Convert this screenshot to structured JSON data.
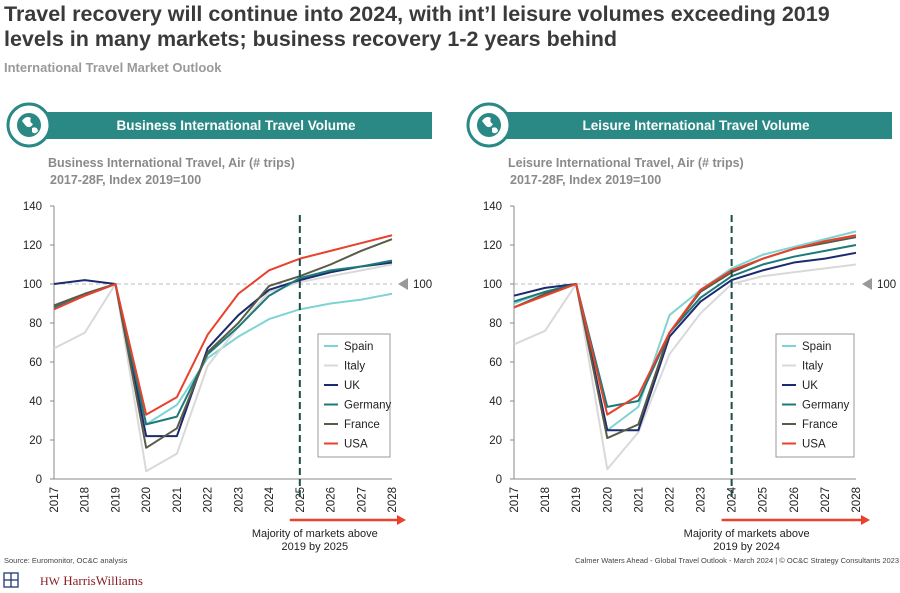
{
  "title": "Travel recovery will continue into 2024, with int’l leisure volumes exceeding 2019 levels in many markets; business recovery 1-2 years behind",
  "subtitle": "International Travel Market Outlook",
  "source": "Source: Euromonitor, OC&C analysis",
  "footer": "Calmer Waters Ahead - Global Travel Outlook - March 2024 | © OC&C Strategy Consultants 2023",
  "logo_mark": "HW",
  "logo": "HarrisWilliams",
  "chart_data": [
    {
      "type": "line",
      "title": "Business International Travel Volume",
      "subtitle_lines": [
        "Business International Travel, Air (# trips)",
        "2017-28F, Index 2019=100"
      ],
      "categories": [
        "2017",
        "2018",
        "2019",
        "2020",
        "2021",
        "2022",
        "2023",
        "2024",
        "2025",
        "2026",
        "2027",
        "2028"
      ],
      "series": [
        {
          "name": "Spain",
          "color": "#7fd3d3",
          "values": [
            88,
            94,
            100,
            28,
            38,
            62,
            73,
            82,
            87,
            90,
            92,
            95
          ]
        },
        {
          "name": "Italy",
          "color": "#d9d9d9",
          "values": [
            67,
            75,
            100,
            4,
            13,
            58,
            78,
            96,
            101,
            104,
            107,
            110
          ]
        },
        {
          "name": "UK",
          "color": "#1c2a6e",
          "values": [
            100,
            102,
            100,
            22,
            22,
            67,
            84,
            97,
            102,
            106,
            109,
            111
          ]
        },
        {
          "name": "Germany",
          "color": "#1b7a7a",
          "values": [
            88,
            94,
            100,
            28,
            32,
            64,
            78,
            94,
            103,
            107,
            109,
            112
          ]
        },
        {
          "name": "France",
          "color": "#5a5a48",
          "values": [
            89,
            95,
            100,
            16,
            26,
            65,
            80,
            99,
            104,
            110,
            117,
            123
          ]
        },
        {
          "name": "USA",
          "color": "#e8412c",
          "values": [
            87,
            94,
            100,
            33,
            42,
            74,
            95,
            107,
            113,
            117,
            121,
            125
          ]
        }
      ],
      "ylim": [
        0,
        140
      ],
      "yticks": [
        0,
        20,
        40,
        60,
        80,
        100,
        120,
        140
      ],
      "hline": 100,
      "vline": "2025",
      "annotation": "Majority of markets above 2019 by 2025"
    },
    {
      "type": "line",
      "title": "Leisure International Travel Volume",
      "subtitle_lines": [
        "Leisure International Travel, Air (# trips)",
        "2017-28F, Index 2019=100"
      ],
      "categories": [
        "2017",
        "2018",
        "2019",
        "2020",
        "2021",
        "2022",
        "2023",
        "2024",
        "2025",
        "2026",
        "2027",
        "2028"
      ],
      "series": [
        {
          "name": "Spain",
          "color": "#7fd3d3",
          "values": [
            90,
            96,
            100,
            25,
            37,
            84,
            97,
            108,
            115,
            119,
            123,
            127
          ]
        },
        {
          "name": "Italy",
          "color": "#d9d9d9",
          "values": [
            69,
            76,
            100,
            5,
            24,
            64,
            85,
            100,
            104,
            106,
            108,
            110
          ]
        },
        {
          "name": "UK",
          "color": "#1c2a6e",
          "values": [
            94,
            98,
            100,
            25,
            25,
            73,
            91,
            102,
            107,
            111,
            113,
            116
          ]
        },
        {
          "name": "Germany",
          "color": "#1b7a7a",
          "values": [
            91,
            96,
            100,
            37,
            40,
            75,
            93,
            104,
            110,
            114,
            117,
            120
          ]
        },
        {
          "name": "France",
          "color": "#5a5a48",
          "values": [
            88,
            95,
            100,
            21,
            28,
            75,
            96,
            106,
            113,
            118,
            121,
            124
          ]
        },
        {
          "name": "USA",
          "color": "#e8412c",
          "values": [
            88,
            94,
            100,
            33,
            43,
            75,
            97,
            107,
            113,
            118,
            122,
            125
          ]
        }
      ],
      "ylim": [
        0,
        140
      ],
      "yticks": [
        0,
        20,
        40,
        60,
        80,
        100,
        120,
        140
      ],
      "hline": 100,
      "vline": "2024",
      "annotation": "Majority of markets above 2019 by 2024"
    }
  ]
}
